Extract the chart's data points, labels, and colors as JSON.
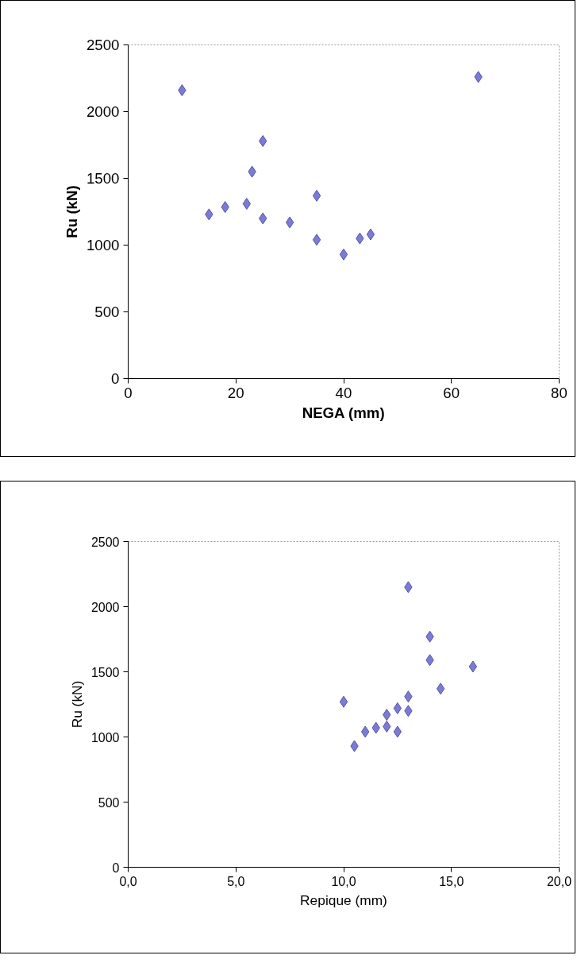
{
  "chart_data": [
    {
      "type": "scatter",
      "xlabel": "NEGA (mm)",
      "ylabel": "Ru (kN)",
      "marker": "diamond",
      "color": "#7b7bd6",
      "x": [
        10,
        65,
        25,
        23,
        35,
        15,
        18,
        22,
        25,
        30,
        35,
        40,
        43,
        45
      ],
      "values": [
        2160,
        2260,
        1780,
        1550,
        1370,
        1230,
        1285,
        1310,
        1200,
        1170,
        1040,
        930,
        1050,
        1080
      ],
      "xlim": [
        0,
        80
      ],
      "xticks": [
        0,
        20,
        40,
        60,
        80
      ],
      "ylim": [
        0,
        2500
      ],
      "yticks": [
        0,
        500,
        1000,
        1500,
        2000,
        2500
      ]
    },
    {
      "type": "scatter",
      "xlabel": "Repique (mm)",
      "ylabel": "Ru (kN)",
      "marker": "diamond",
      "color": "#7b7bd6",
      "x": [
        13,
        14,
        14,
        16,
        14.5,
        10,
        13,
        12.5,
        13,
        12,
        12,
        11.5,
        11,
        12.5,
        10.5
      ],
      "values": [
        2150,
        1770,
        1590,
        1540,
        1370,
        1270,
        1310,
        1220,
        1200,
        1170,
        1080,
        1070,
        1040,
        1040,
        930
      ],
      "xlim": [
        0,
        20
      ],
      "xticks": [
        {
          "value": 0,
          "label": "0,0"
        },
        {
          "value": 5,
          "label": "5,0"
        },
        {
          "value": 10,
          "label": "10,0"
        },
        {
          "value": 15,
          "label": "15,0"
        },
        {
          "value": 20,
          "label": "20,0"
        }
      ],
      "ylim": [
        0,
        2500
      ],
      "yticks": [
        0,
        500,
        1000,
        1500,
        2000,
        2500
      ]
    }
  ]
}
